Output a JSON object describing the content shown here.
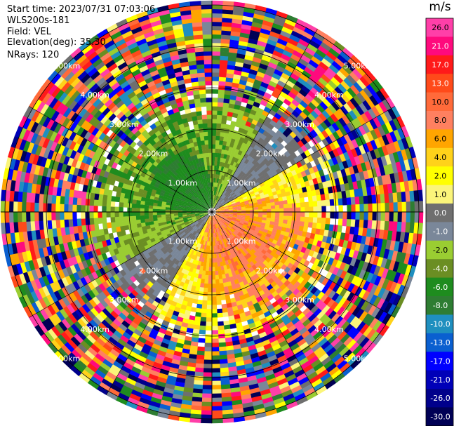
{
  "header": {
    "start_time": "Start time: 2023/07/31 07:03:06",
    "instrument": "WLS200s-181",
    "field": "Field: VEL",
    "elevation": "Elevation(deg): 35.30",
    "nrays": "NRays: 120"
  },
  "chart_data": {
    "type": "heatmap",
    "projection": "polar PPI",
    "field": "VEL",
    "n_rays": 120,
    "range_rings_km": [
      1.0,
      2.0,
      3.0,
      4.0,
      5.0
    ],
    "range_labels": [
      "1.00km",
      "2.00km",
      "3.00km",
      "4.00km",
      "5.00km"
    ],
    "colorbar": {
      "unit": "m/s",
      "tick_labels": [
        "26.0",
        "21.0",
        "17.0",
        "13.0",
        "10.0",
        "8.0",
        "6.0",
        "4.0",
        "2.0",
        "1.0",
        "0.0",
        "-1.0",
        "-2.0",
        "-4.0",
        "-6.0",
        "-8.0",
        "-10.0",
        "-13.0",
        "-17.0",
        "-21.0",
        "-26.0",
        "-30.0"
      ],
      "colors": [
        "#ff3fa8",
        "#ff0a7d",
        "#ff1a1a",
        "#ff4a1a",
        "#ff6a3a",
        "#ff8060",
        "#ffa500",
        "#ffd21a",
        "#ffff00",
        "#fbf57a",
        "#6f6f6f",
        "#7a8799",
        "#9acd32",
        "#6b8e23",
        "#1e8c1e",
        "#2e7d32",
        "#1f8fbf",
        "#0a5fd0",
        "#0000ff",
        "#0000b8",
        "#00008b",
        "#000055"
      ]
    },
    "pattern": {
      "near_northwest": "negative velocity (green)",
      "near_southeast": "positive velocity (red/orange/yellow)",
      "outer_ring": "noise, all colors"
    }
  }
}
